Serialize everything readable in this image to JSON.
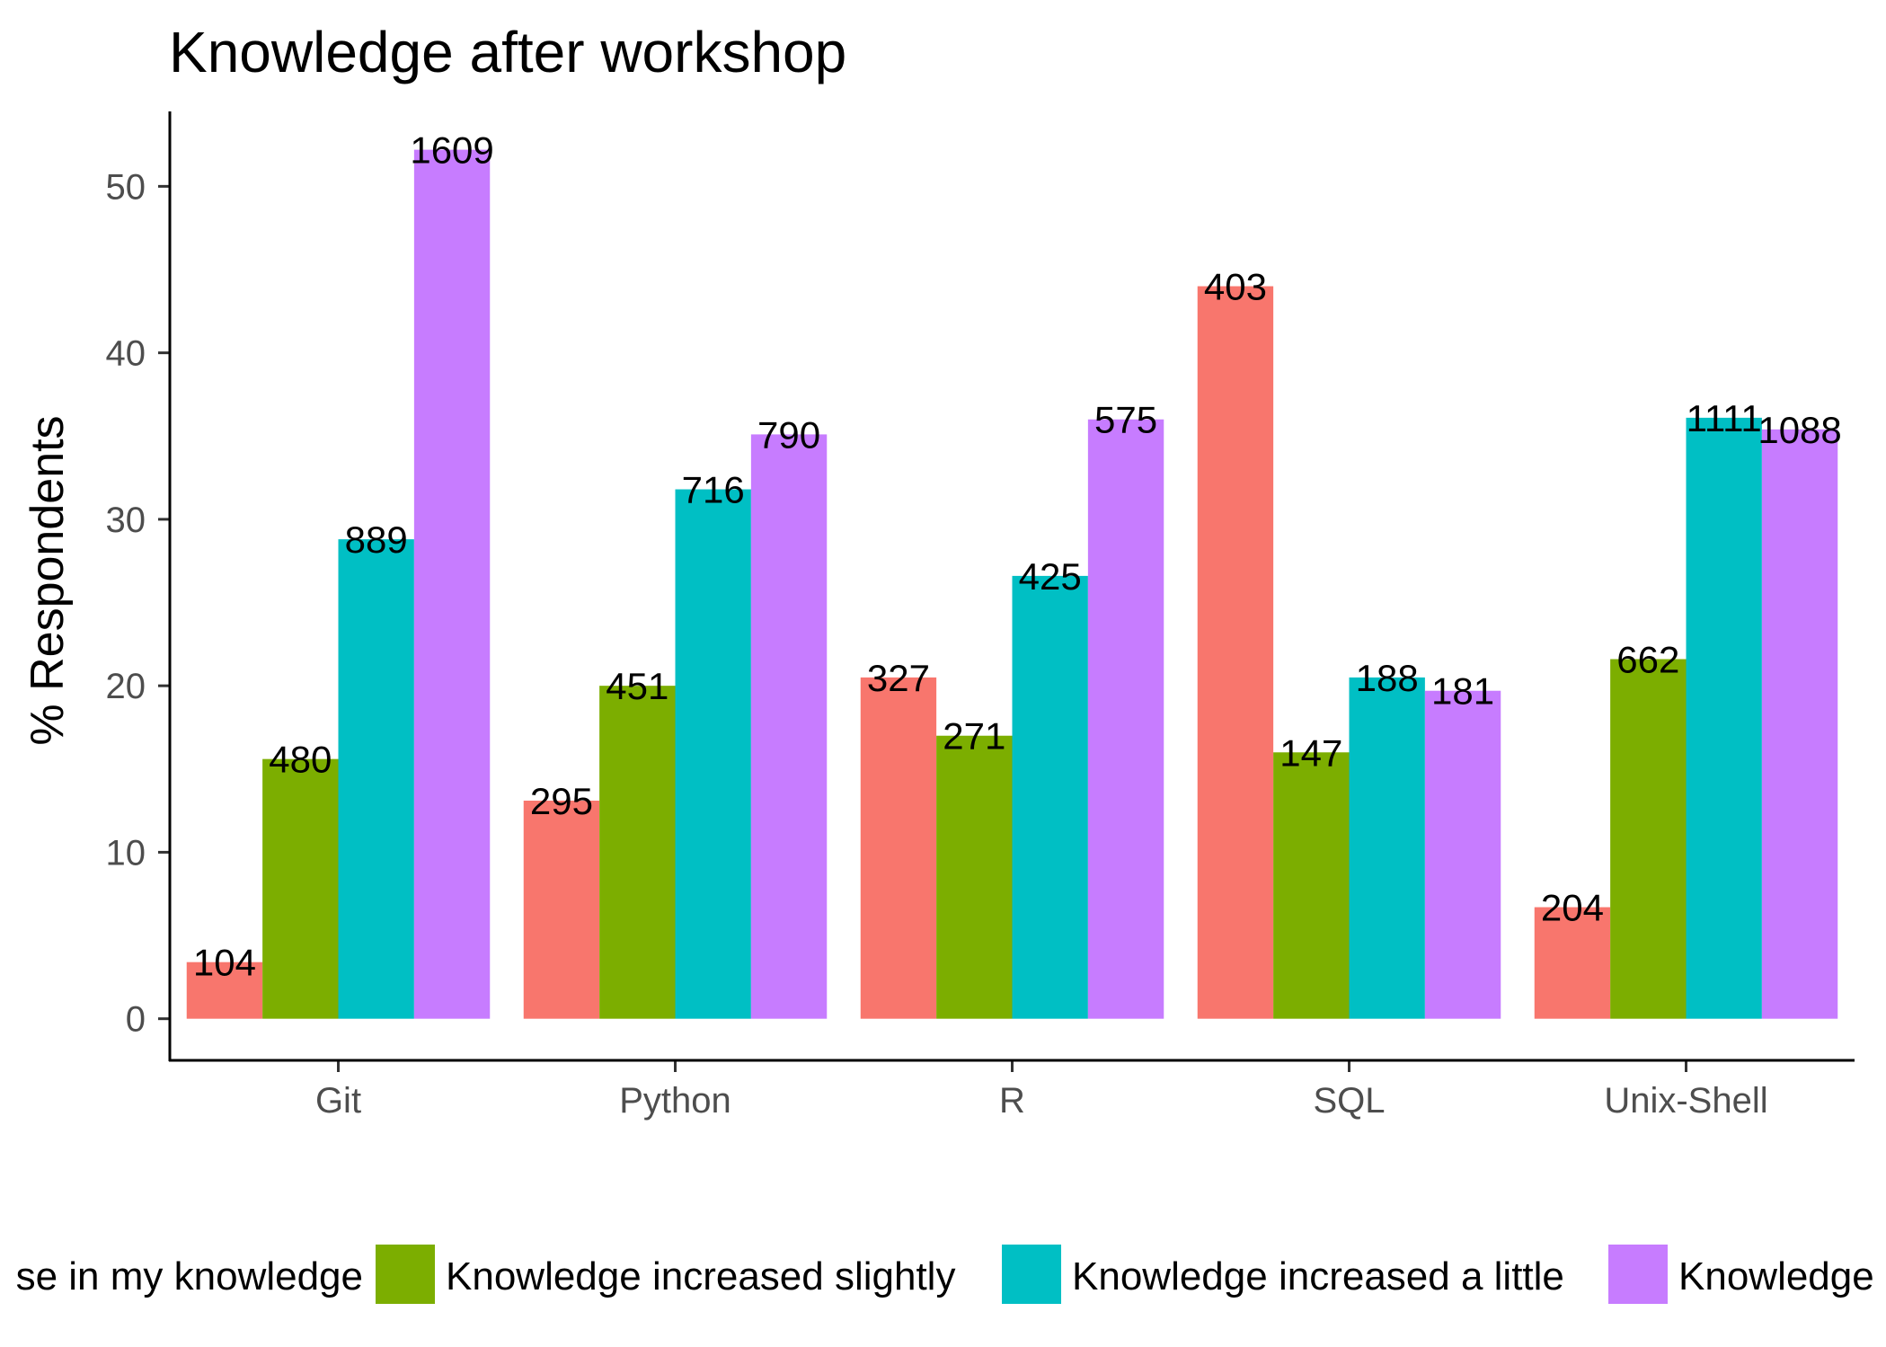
{
  "chart_data": {
    "type": "bar",
    "title": "Knowledge after workshop",
    "xlabel": "",
    "ylabel": "% Respondents",
    "ylim": [
      -2.5,
      54.5
    ],
    "yticks": [
      0,
      10,
      20,
      30,
      40,
      50
    ],
    "grid": false,
    "legend_position": "bottom",
    "categories": [
      "Git",
      "Python",
      "R",
      "SQL",
      "Unix-Shell"
    ],
    "series": [
      {
        "name": "se in my knowledge",
        "color": "#F8766D",
        "values": [
          3.4,
          13.1,
          20.5,
          44.0,
          6.7
        ],
        "labels": [
          "104",
          "295",
          "327",
          "403",
          "204"
        ]
      },
      {
        "name": "Knowledge increased slightly",
        "color": "#7CAE00",
        "values": [
          15.6,
          20.0,
          17.0,
          16.0,
          21.6
        ],
        "labels": [
          "480",
          "451",
          "271",
          "147",
          "662"
        ]
      },
      {
        "name": "Knowledge increased a little",
        "color": "#00BFC4",
        "values": [
          28.8,
          31.8,
          26.6,
          20.5,
          36.1
        ],
        "labels": [
          "889",
          "716",
          "425",
          "188",
          "1111"
        ]
      },
      {
        "name": "Knowledge",
        "color": "#C77CFF",
        "values": [
          52.2,
          35.1,
          36.0,
          19.7,
          35.4
        ],
        "labels": [
          "1609",
          "790",
          "575",
          "181",
          "1088"
        ]
      }
    ]
  }
}
